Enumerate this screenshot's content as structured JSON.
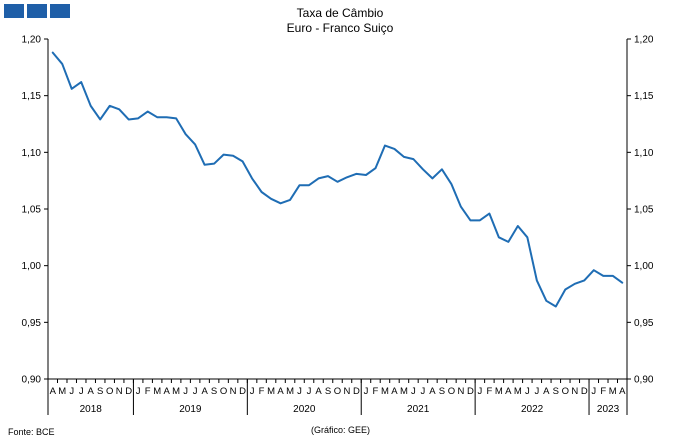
{
  "header": {
    "logo_colors": [
      "#1f5fa8",
      "#1f5fa8",
      "#1f5fa8"
    ],
    "title_line1": "Taxa de Câmbio",
    "title_line2": "Euro - Franco Suiço"
  },
  "footer": {
    "source": "Fonte: BCE",
    "credit": "(Gráfico: GEE)"
  },
  "chart_data": {
    "type": "line",
    "title": "Taxa de Câmbio Euro - Franco Suiço",
    "xlabel": "",
    "ylabel": "",
    "ylim": [
      0.9,
      1.2
    ],
    "y_ticks": [
      "0,90",
      "0,95",
      "1,00",
      "1,05",
      "1,10",
      "1,15",
      "1,20"
    ],
    "y_tick_values": [
      0.9,
      0.95,
      1.0,
      1.05,
      1.1,
      1.15,
      1.2
    ],
    "grid": false,
    "line_color": "#1f6db4",
    "month_labels": [
      "A",
      "M",
      "J",
      "J",
      "A",
      "S",
      "O",
      "N",
      "D",
      "J",
      "F",
      "M",
      "A",
      "M",
      "J",
      "J",
      "A",
      "S",
      "O",
      "N",
      "D",
      "J",
      "F",
      "M",
      "A",
      "M",
      "J",
      "J",
      "A",
      "S",
      "O",
      "N",
      "D",
      "J",
      "F",
      "M",
      "A",
      "M",
      "J",
      "J",
      "A",
      "S",
      "O",
      "N",
      "D",
      "J",
      "F",
      "M",
      "A",
      "M",
      "J",
      "J",
      "A",
      "S",
      "O",
      "N",
      "D",
      "J",
      "F",
      "M",
      "A"
    ],
    "years": [
      {
        "label": "2018",
        "months": 9
      },
      {
        "label": "2019",
        "months": 12
      },
      {
        "label": "2020",
        "months": 12
      },
      {
        "label": "2021",
        "months": 12
      },
      {
        "label": "2022",
        "months": 12
      },
      {
        "label": "2023",
        "months": 4
      }
    ],
    "series": [
      {
        "values": [
          1.188,
          1.178,
          1.156,
          1.162,
          1.141,
          1.129,
          1.141,
          1.138,
          1.129,
          1.13,
          1.136,
          1.131,
          1.131,
          1.13,
          1.116,
          1.107,
          1.089,
          1.09,
          1.098,
          1.097,
          1.092,
          1.077,
          1.065,
          1.059,
          1.055,
          1.058,
          1.071,
          1.071,
          1.077,
          1.079,
          1.074,
          1.078,
          1.081,
          1.08,
          1.086,
          1.106,
          1.103,
          1.096,
          1.094,
          1.085,
          1.077,
          1.085,
          1.072,
          1.052,
          1.04,
          1.04,
          1.046,
          1.025,
          1.021,
          1.035,
          1.025,
          0.987,
          0.969,
          0.964,
          0.979,
          0.984,
          0.987,
          0.996,
          0.991,
          0.991,
          0.985
        ]
      }
    ]
  }
}
